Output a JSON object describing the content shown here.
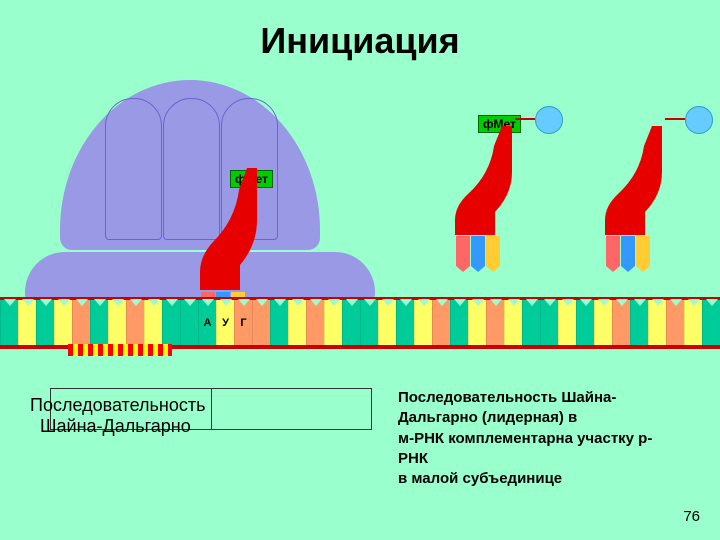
{
  "title": "Инициация",
  "fmet_label": "фМет",
  "fmet_label2": "фМет",
  "codon_letters": {
    "a": "А",
    "u": "У",
    "g": "Г"
  },
  "left_label_line1": "Последовательность",
  "left_label_line2": "Шайна-Дальгарно",
  "desc_l1": "Последовательность Шайна-",
  "desc_l2": "Дальгарно (лидерная) в",
  "desc_l3": "м-РНК комплементарна участку р-",
  "desc_l4": "РНК",
  "desc_l5": " в малой субъединице",
  "page": "76",
  "colors": {
    "bg": "#99ffcc",
    "ribosome": "#9999e6",
    "trna": "#e60000",
    "mrna_border": "#cc0000",
    "fmet_bg": "#00cc00",
    "aa": "#66ccff"
  },
  "mrna_palette": [
    "#00cc99",
    "#ffff66",
    "#00cc99",
    "#ffff66",
    "#ff9966",
    "#00cc99",
    "#ffff66",
    "#ff9966",
    "#ffff66",
    "#00cc99"
  ],
  "aug_colors": {
    "a": "#00cc99",
    "u": "#ffff66",
    "g": "#ff9966"
  }
}
